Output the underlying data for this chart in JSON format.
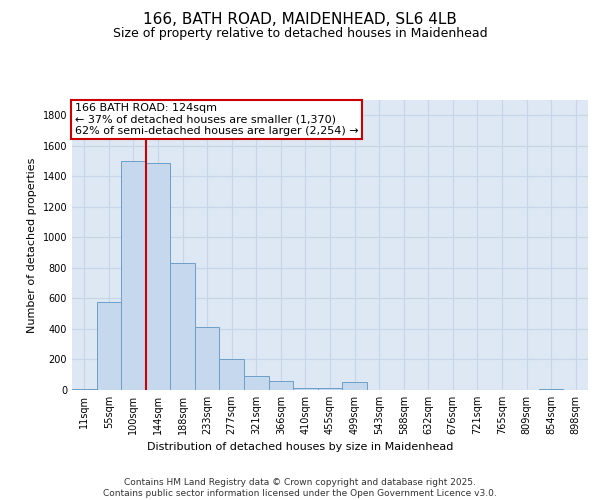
{
  "title_line1": "166, BATH ROAD, MAIDENHEAD, SL6 4LB",
  "title_line2": "Size of property relative to detached houses in Maidenhead",
  "xlabel": "Distribution of detached houses by size in Maidenhead",
  "ylabel": "Number of detached properties",
  "footer_line1": "Contains HM Land Registry data © Crown copyright and database right 2025.",
  "footer_line2": "Contains public sector information licensed under the Open Government Licence v3.0.",
  "annotation_line1": "166 BATH ROAD: 124sqm",
  "annotation_line2": "← 37% of detached houses are smaller (1,370)",
  "annotation_line3": "62% of semi-detached houses are larger (2,254) →",
  "bar_labels": [
    "11sqm",
    "55sqm",
    "100sqm",
    "144sqm",
    "188sqm",
    "233sqm",
    "277sqm",
    "321sqm",
    "366sqm",
    "410sqm",
    "455sqm",
    "499sqm",
    "543sqm",
    "588sqm",
    "632sqm",
    "676sqm",
    "721sqm",
    "765sqm",
    "809sqm",
    "854sqm",
    "898sqm"
  ],
  "bar_values": [
    8,
    575,
    1500,
    1490,
    830,
    410,
    205,
    95,
    60,
    10,
    10,
    55,
    0,
    0,
    0,
    0,
    0,
    0,
    0,
    8,
    0
  ],
  "bar_color": "#c5d8ed",
  "bar_edge_color": "#6b9fc8",
  "grid_color": "#c8d4e8",
  "background_color": "#dde8f4",
  "vline_color": "#cc0000",
  "ylim": [
    0,
    1900
  ],
  "yticks": [
    0,
    200,
    400,
    600,
    800,
    1000,
    1200,
    1400,
    1600,
    1800
  ],
  "title_fontsize": 11,
  "subtitle_fontsize": 9,
  "axis_label_fontsize": 8,
  "tick_fontsize": 7,
  "footer_fontsize": 6.5,
  "annotation_fontsize": 8
}
